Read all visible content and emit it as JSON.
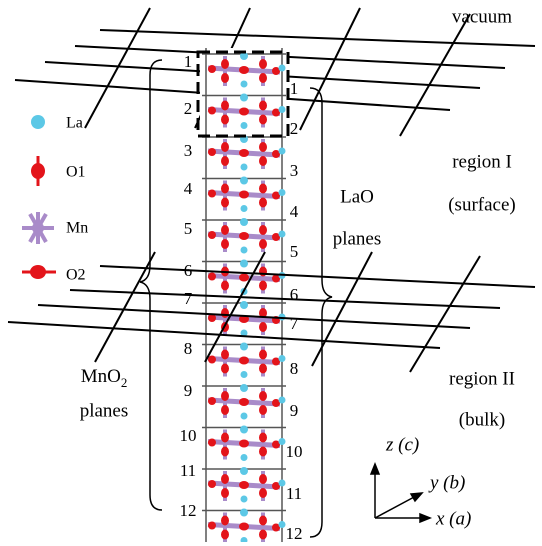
{
  "labels": {
    "vacuum": "vacuum",
    "lao": "LaO",
    "lao_planes": "planes",
    "mno2": {
      "text": "MnO",
      "subscript": "2"
    },
    "mno2_planes": "planes",
    "region1": "region I",
    "region1_sub": "(surface)",
    "region2": "region II",
    "region2_sub": "(bulk)"
  },
  "legend": [
    "La",
    "O1",
    "Mn",
    "O2"
  ],
  "left_numbers": [
    "1",
    "2",
    "3",
    "4",
    "5",
    "6",
    "7",
    "8",
    "9",
    "10",
    "11",
    "12"
  ],
  "right_numbers": [
    "1",
    "2",
    "3",
    "4",
    "5",
    "6",
    "7",
    "8",
    "9",
    "10",
    "11",
    "12"
  ],
  "axes": {
    "z": "z (c)",
    "y": "y (b)",
    "x": "x (a)"
  }
}
